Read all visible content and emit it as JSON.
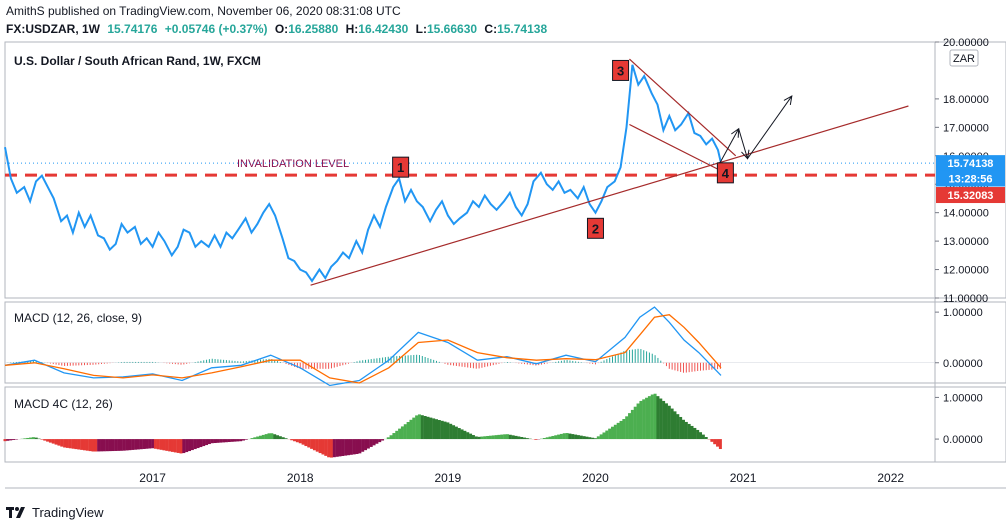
{
  "header": {
    "line1": "AmithS published on TradingView.com, November 06, 2020 08:31:08 UTC",
    "symbol": "FX:USDZAR, 1W",
    "last": "15.74176",
    "change": "+0.05746 (+0.37%)",
    "o_label": "O:",
    "o_value": "16.25880",
    "h_label": "H:",
    "h_value": "16.42430",
    "l_label": "L:",
    "l_value": "15.66630",
    "c_label": "C:",
    "c_value": "15.74138"
  },
  "footer": {
    "brand": "TradingView"
  },
  "colors": {
    "price": "#2196f3",
    "trend": "#a52a2a",
    "invalidation": "#e53935",
    "macd": "#2196f3",
    "signal": "#ff6d00",
    "hist_pos": "#26a69a",
    "hist_neg": "#ef5350",
    "c4_up": "#4caf50",
    "c4_pos_dim": "#2e7d32",
    "c4_down": "#e53935",
    "c4_neg_dim": "#880e4f",
    "badge": "#e53935"
  },
  "chart_data": [
    {
      "type": "line",
      "title": "U.S. Dollar / South African Rand, 1W, FXCM",
      "currency": "ZAR",
      "ylim": [
        11.0,
        20.0
      ],
      "y_ticks": [
        "11.00000",
        "12.00000",
        "13.00000",
        "14.00000",
        "15.00000",
        "16.00000",
        "17.00000",
        "18.00000",
        "20.00000"
      ],
      "x_ticks": [
        "2017",
        "2018",
        "2019",
        "2020",
        "2021",
        "2022"
      ],
      "x_tick_values": [
        2017,
        2018,
        2019,
        2020,
        2021,
        2022
      ],
      "xlim": [
        2016.0,
        2022.3
      ],
      "series": [
        {
          "name": "",
          "points": [
            [
              2016.0,
              16.3
            ],
            [
              2016.04,
              15.2
            ],
            [
              2016.08,
              14.7
            ],
            [
              2016.13,
              14.9
            ],
            [
              2016.17,
              14.4
            ],
            [
              2016.21,
              15.1
            ],
            [
              2016.25,
              15.3
            ],
            [
              2016.29,
              14.9
            ],
            [
              2016.33,
              14.5
            ],
            [
              2016.38,
              13.7
            ],
            [
              2016.42,
              13.9
            ],
            [
              2016.46,
              13.3
            ],
            [
              2016.5,
              14.0
            ],
            [
              2016.54,
              13.5
            ],
            [
              2016.58,
              13.9
            ],
            [
              2016.63,
              13.2
            ],
            [
              2016.67,
              13.1
            ],
            [
              2016.71,
              12.7
            ],
            [
              2016.75,
              12.9
            ],
            [
              2016.79,
              13.6
            ],
            [
              2016.83,
              13.3
            ],
            [
              2016.88,
              13.5
            ],
            [
              2016.92,
              12.9
            ],
            [
              2016.96,
              13.1
            ],
            [
              2017.0,
              12.8
            ],
            [
              2017.04,
              13.3
            ],
            [
              2017.08,
              13.0
            ],
            [
              2017.13,
              12.5
            ],
            [
              2017.17,
              12.8
            ],
            [
              2017.21,
              13.4
            ],
            [
              2017.25,
              13.3
            ],
            [
              2017.29,
              12.8
            ],
            [
              2017.33,
              13.0
            ],
            [
              2017.38,
              12.8
            ],
            [
              2017.42,
              13.2
            ],
            [
              2017.46,
              12.8
            ],
            [
              2017.5,
              13.3
            ],
            [
              2017.54,
              13.1
            ],
            [
              2017.58,
              13.4
            ],
            [
              2017.63,
              13.8
            ],
            [
              2017.67,
              13.3
            ],
            [
              2017.71,
              13.6
            ],
            [
              2017.75,
              14.0
            ],
            [
              2017.79,
              14.3
            ],
            [
              2017.83,
              13.9
            ],
            [
              2017.88,
              13.1
            ],
            [
              2017.92,
              12.4
            ],
            [
              2017.96,
              12.3
            ],
            [
              2018.0,
              12.0
            ],
            [
              2018.04,
              11.9
            ],
            [
              2018.08,
              11.6
            ],
            [
              2018.13,
              12.0
            ],
            [
              2018.17,
              11.7
            ],
            [
              2018.21,
              12.1
            ],
            [
              2018.25,
              12.3
            ],
            [
              2018.29,
              12.6
            ],
            [
              2018.33,
              12.4
            ],
            [
              2018.38,
              13.0
            ],
            [
              2018.42,
              12.6
            ],
            [
              2018.46,
              13.4
            ],
            [
              2018.5,
              13.9
            ],
            [
              2018.54,
              13.5
            ],
            [
              2018.58,
              14.2
            ],
            [
              2018.63,
              14.9
            ],
            [
              2018.67,
              15.2
            ],
            [
              2018.71,
              14.4
            ],
            [
              2018.75,
              14.8
            ],
            [
              2018.79,
              14.4
            ],
            [
              2018.83,
              14.2
            ],
            [
              2018.88,
              13.7
            ],
            [
              2018.92,
              14.1
            ],
            [
              2018.96,
              14.4
            ],
            [
              2019.0,
              13.9
            ],
            [
              2019.04,
              13.6
            ],
            [
              2019.08,
              13.8
            ],
            [
              2019.13,
              14.0
            ],
            [
              2019.17,
              14.4
            ],
            [
              2019.21,
              14.2
            ],
            [
              2019.25,
              14.6
            ],
            [
              2019.29,
              14.3
            ],
            [
              2019.33,
              14.1
            ],
            [
              2019.38,
              14.4
            ],
            [
              2019.42,
              14.7
            ],
            [
              2019.46,
              14.2
            ],
            [
              2019.5,
              13.9
            ],
            [
              2019.54,
              14.3
            ],
            [
              2019.58,
              15.1
            ],
            [
              2019.63,
              15.4
            ],
            [
              2019.67,
              15.0
            ],
            [
              2019.71,
              14.8
            ],
            [
              2019.75,
              15.1
            ],
            [
              2019.79,
              14.7
            ],
            [
              2019.83,
              14.8
            ],
            [
              2019.88,
              14.5
            ],
            [
              2019.92,
              14.9
            ],
            [
              2019.96,
              14.3
            ],
            [
              2020.0,
              14.0
            ],
            [
              2020.04,
              14.4
            ],
            [
              2020.08,
              14.9
            ],
            [
              2020.13,
              15.1
            ],
            [
              2020.17,
              15.6
            ],
            [
              2020.21,
              17.0
            ],
            [
              2020.25,
              19.2
            ],
            [
              2020.29,
              18.5
            ],
            [
              2020.33,
              18.8
            ],
            [
              2020.38,
              18.2
            ],
            [
              2020.42,
              17.8
            ],
            [
              2020.46,
              16.9
            ],
            [
              2020.5,
              17.4
            ],
            [
              2020.54,
              16.9
            ],
            [
              2020.58,
              17.1
            ],
            [
              2020.63,
              17.5
            ],
            [
              2020.67,
              16.8
            ],
            [
              2020.71,
              16.7
            ],
            [
              2020.75,
              16.4
            ],
            [
              2020.79,
              16.6
            ],
            [
              2020.83,
              16.2
            ],
            [
              2020.85,
              15.74
            ]
          ]
        }
      ],
      "hlines": [
        {
          "label": "INVALIDATION LEVEL",
          "y": 15.32083
        }
      ],
      "trendlines": [
        {
          "from": [
            2018.07,
            11.45
          ],
          "to": [
            2022.12,
            17.75
          ]
        },
        {
          "from": [
            2020.23,
            19.4
          ],
          "to": [
            2020.95,
            16.0
          ]
        },
        {
          "from": [
            2020.23,
            17.1
          ],
          "to": [
            2020.84,
            15.5
          ]
        }
      ],
      "arrows": [
        {
          "from": [
            2020.84,
            15.72
          ],
          "to": [
            2020.97,
            16.95
          ]
        },
        {
          "from": [
            2020.97,
            16.95
          ],
          "to": [
            2021.03,
            15.9
          ]
        },
        {
          "from": [
            2021.03,
            15.9
          ],
          "to": [
            2021.33,
            18.1
          ]
        }
      ],
      "annotations": [
        {
          "text": "1",
          "x": 2018.68,
          "y": 15.6
        },
        {
          "text": "2",
          "x": 2020.0,
          "y": 13.45
        },
        {
          "text": "3",
          "x": 2020.17,
          "y": 19.0
        },
        {
          "text": "4",
          "x": 2020.88,
          "y": 15.4
        }
      ],
      "price_labels": [
        {
          "text": "15.74138",
          "y": 15.74138,
          "color": "#2196f3"
        },
        {
          "text": "13:28:56",
          "y": 15.2,
          "color": "#2196f3"
        },
        {
          "text": "15.32083",
          "y": 14.62,
          "color": "#e53935"
        }
      ]
    },
    {
      "type": "line",
      "title": "MACD (12, 26, close, 9)",
      "ylim": [
        -0.4,
        1.2
      ],
      "y_ticks": [
        "1.00000",
        "0.00000"
      ],
      "x": [
        2016.0,
        2016.2,
        2016.4,
        2016.6,
        2016.8,
        2017.0,
        2017.2,
        2017.4,
        2017.6,
        2017.8,
        2018.0,
        2018.2,
        2018.4,
        2018.6,
        2018.8,
        2019.0,
        2019.2,
        2019.4,
        2019.6,
        2019.8,
        2020.0,
        2020.2,
        2020.3,
        2020.4,
        2020.5,
        2020.6,
        2020.7,
        2020.85
      ],
      "series": [
        {
          "name": "MACD",
          "values": [
            -0.05,
            0.05,
            -0.2,
            -0.3,
            -0.28,
            -0.22,
            -0.35,
            -0.1,
            -0.05,
            0.15,
            -0.1,
            -0.45,
            -0.35,
            0.05,
            0.6,
            0.4,
            0.05,
            0.12,
            -0.02,
            0.15,
            0.02,
            0.5,
            0.9,
            1.1,
            0.8,
            0.45,
            0.2,
            -0.25
          ]
        },
        {
          "name": "Signal",
          "values": [
            -0.05,
            0.0,
            -0.12,
            -0.25,
            -0.3,
            -0.24,
            -0.3,
            -0.2,
            -0.08,
            0.05,
            0.05,
            -0.3,
            -0.4,
            -0.1,
            0.4,
            0.45,
            0.2,
            0.1,
            0.05,
            0.08,
            0.06,
            0.2,
            0.55,
            0.9,
            0.95,
            0.7,
            0.4,
            -0.1
          ]
        }
      ]
    },
    {
      "type": "bar",
      "title": "MACD 4C (12, 26)",
      "ylim": [
        -0.55,
        1.25
      ],
      "y_ticks": [
        "1.00000",
        "0.00000"
      ]
    }
  ]
}
